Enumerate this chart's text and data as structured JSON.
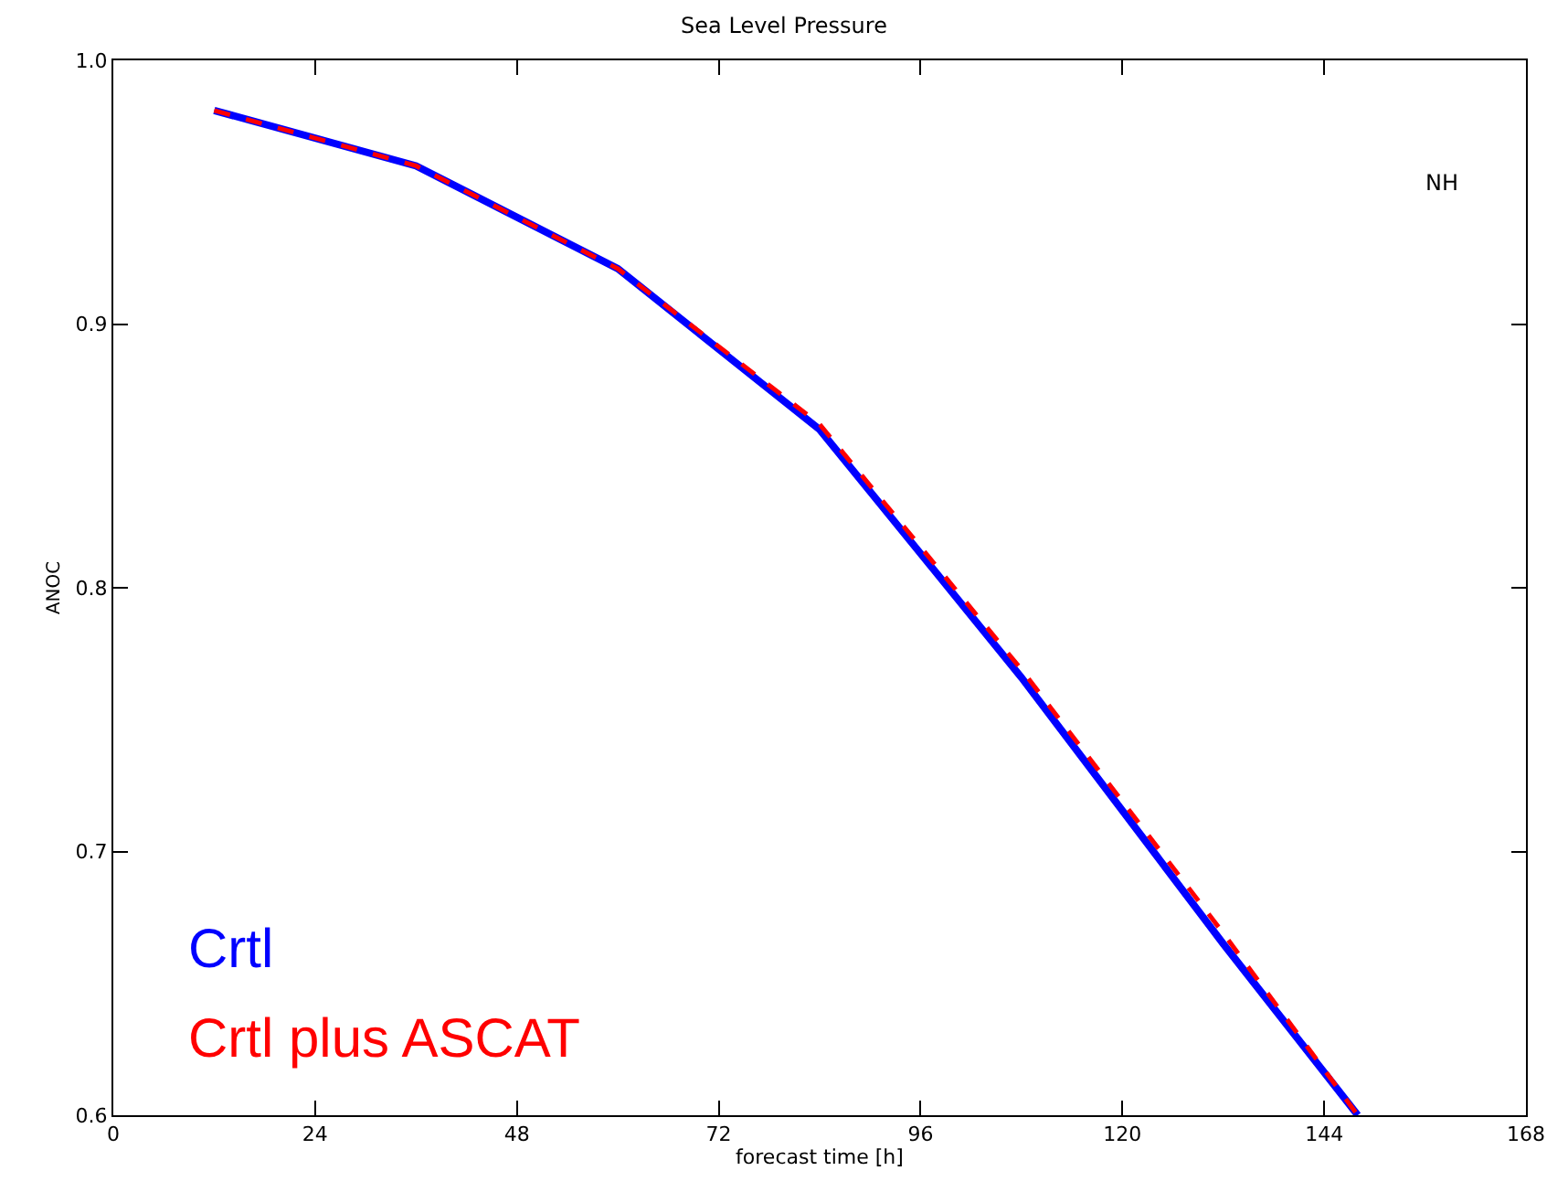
{
  "chart_data": {
    "type": "line",
    "title": "Sea Level Pressure",
    "xlabel": "forecast time [h]",
    "ylabel": "ANOC",
    "x": [
      12,
      36,
      60,
      84,
      108,
      132,
      148
    ],
    "series": [
      {
        "name": "Crtl",
        "color": "#0000ff",
        "line_style": "solid",
        "values": [
          0.981,
          0.96,
          0.921,
          0.86,
          0.766,
          0.665,
          0.6
        ]
      },
      {
        "name": "Crtl plus ASCAT",
        "color": "#ff0000",
        "line_style": "dashed",
        "values": [
          0.981,
          0.96,
          0.921,
          0.862,
          0.769,
          0.669,
          0.6
        ]
      }
    ],
    "xlim": [
      0,
      168
    ],
    "xticks": [
      0,
      24,
      48,
      72,
      96,
      120,
      144,
      168
    ],
    "ylim": [
      0.6,
      1.0
    ],
    "yticks": [
      {
        "value": 0.6,
        "label": "0.6"
      },
      {
        "value": 0.7,
        "label": "0.7"
      },
      {
        "value": 0.8,
        "label": "0.8"
      },
      {
        "value": 0.9,
        "label": "0.9"
      },
      {
        "value": 1.0,
        "label": "1.0"
      }
    ],
    "annotations": [
      "NH"
    ],
    "grid": false,
    "legend": "bottom left",
    "marker": "none"
  }
}
